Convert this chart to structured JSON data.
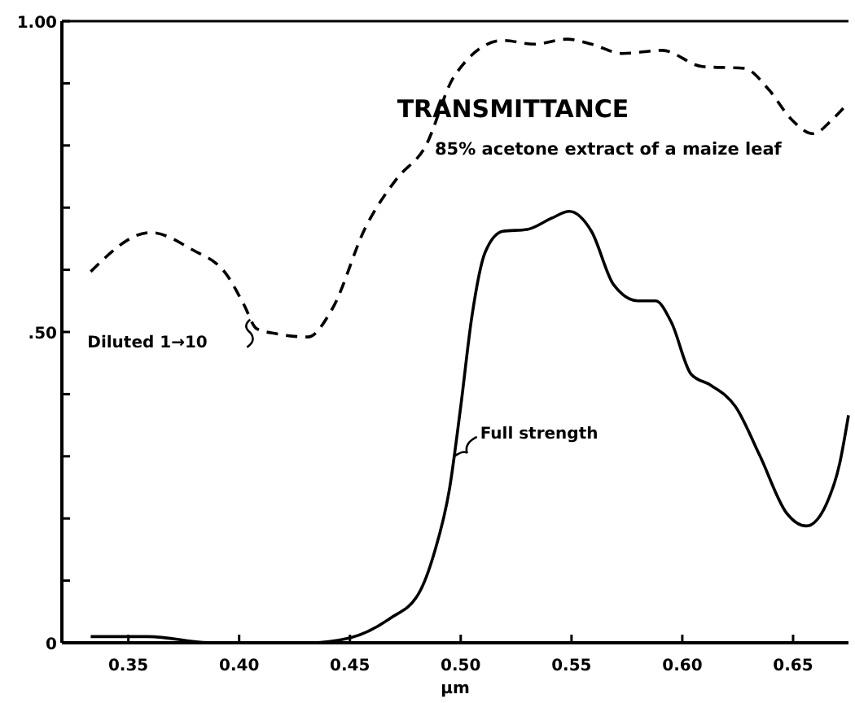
{
  "chart_data": {
    "type": "line",
    "xlabel": "μm",
    "xlim": [
      0.32,
      0.675
    ],
    "ylim": [
      0,
      1
    ],
    "xticks": [
      {
        "value": 0.35,
        "label": "0.35"
      },
      {
        "value": 0.4,
        "label": "0.40"
      },
      {
        "value": 0.45,
        "label": "0.45"
      },
      {
        "value": 0.5,
        "label": "0.50"
      },
      {
        "value": 0.55,
        "label": "0.55"
      },
      {
        "value": 0.6,
        "label": "0.60"
      },
      {
        "value": 0.65,
        "label": "0.65"
      }
    ],
    "yticks": [
      0,
      {
        "value": 0.1,
        "label": null
      },
      {
        "value": 0.2,
        "label": null
      },
      {
        "value": 0.3,
        "label": null
      },
      {
        "value": 0.4,
        "label": null
      },
      {
        "value": 0.5,
        "label": ".50"
      },
      {
        "value": 0.6,
        "label": null
      },
      {
        "value": 0.7,
        "label": null
      },
      {
        "value": 0.8,
        "label": null
      },
      {
        "value": 0.9,
        "label": null
      },
      {
        "value": 1,
        "label": "1.00"
      }
    ],
    "grid": false,
    "marker": "none",
    "series": [
      {
        "color": "#000000",
        "line_style": "dashed",
        "x": [
          0.333,
          0.36,
          0.378,
          0.395,
          0.402,
          0.408,
          0.417,
          0.431,
          0.442,
          0.457,
          0.471,
          0.484,
          0.497,
          0.519,
          0.533,
          0.548,
          0.559,
          0.573,
          0.591,
          0.609,
          0.628,
          0.639,
          0.649,
          0.659,
          0.668,
          0.675
        ],
        "values": [
          0.597,
          0.66,
          0.634,
          0.589,
          0.545,
          0.505,
          0.497,
          0.492,
          0.537,
          0.668,
          0.746,
          0.798,
          0.911,
          0.969,
          0.963,
          0.971,
          0.963,
          0.948,
          0.953,
          0.927,
          0.924,
          0.89,
          0.843,
          0.819,
          0.843,
          0.869
        ]
      },
      {
        "color": "#000000",
        "line_style": "solid",
        "x": [
          0.333,
          0.359,
          0.388,
          0.431,
          0.45,
          0.468,
          0.481,
          0.488,
          0.495,
          0.5,
          0.505,
          0.511,
          0.519,
          0.53,
          0.541,
          0.549,
          0.559,
          0.569,
          0.58,
          0.588,
          0.595,
          0.604,
          0.613,
          0.624,
          0.635,
          0.647,
          0.656,
          0.665,
          0.671,
          0.675
        ],
        "values": [
          0.01,
          0.01,
          0,
          0,
          0.008,
          0.039,
          0.079,
          0.144,
          0.249,
          0.38,
          0.524,
          0.628,
          0.662,
          0.665,
          0.683,
          0.694,
          0.662,
          0.576,
          0.55,
          0.55,
          0.516,
          0.432,
          0.414,
          0.38,
          0.301,
          0.209,
          0.188,
          0.223,
          0.288,
          0.366
        ]
      }
    ],
    "annotations": [
      "TRANSMITTANCE",
      "85% acetone extract of a maize leaf",
      {
        "text": "Diluted 1→10",
        "x": 0.405,
        "y": 0.52
      },
      {
        "text": "Full strength",
        "x": 0.497,
        "y": 0.3
      }
    ]
  }
}
